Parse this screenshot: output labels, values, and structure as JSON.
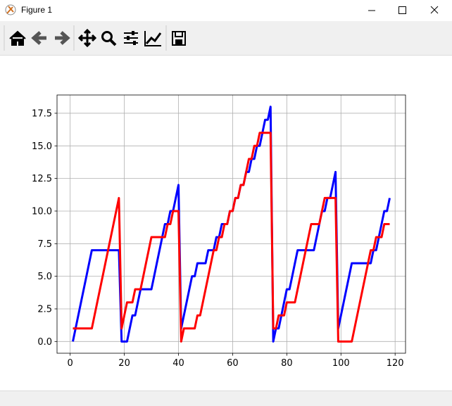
{
  "window": {
    "title": "Figure 1"
  },
  "chart_data": {
    "type": "line",
    "x": [
      1,
      2,
      3,
      4,
      5,
      6,
      7,
      8,
      9,
      10,
      11,
      12,
      13,
      14,
      15,
      16,
      17,
      18,
      19,
      20,
      21,
      22,
      23,
      24,
      25,
      26,
      27,
      28,
      29,
      30,
      31,
      32,
      33,
      34,
      35,
      36,
      37,
      38,
      39,
      40,
      41,
      42,
      43,
      44,
      45,
      46,
      47,
      48,
      49,
      50,
      51,
      52,
      53,
      54,
      55,
      56,
      57,
      58,
      59,
      60,
      61,
      62,
      63,
      64,
      65,
      66,
      67,
      68,
      69,
      70,
      71,
      72,
      73,
      74,
      75,
      76,
      77,
      78,
      79,
      80,
      81,
      82,
      83,
      84,
      85,
      86,
      87,
      88,
      89,
      90,
      91,
      92,
      93,
      94,
      95,
      96,
      97,
      98,
      99,
      100,
      101,
      102,
      103,
      104,
      105,
      106,
      107,
      108,
      109,
      110,
      111,
      112,
      113,
      114,
      115,
      116,
      117,
      118
    ],
    "series": [
      {
        "color": "#0000ff",
        "values": [
          0,
          1,
          2,
          3,
          4,
          5,
          6,
          7,
          7,
          7,
          7,
          7,
          7,
          7,
          7,
          7,
          7,
          7,
          0,
          0,
          0,
          1,
          2,
          2,
          3,
          4,
          4,
          4,
          4,
          4,
          5,
          6,
          7,
          8,
          9,
          9,
          10,
          10,
          11,
          12,
          1,
          2,
          3,
          4,
          5,
          5,
          6,
          6,
          6,
          6,
          7,
          7,
          7,
          8,
          8,
          9,
          9,
          9,
          10,
          10,
          11,
          11,
          12,
          12,
          13,
          13,
          14,
          14,
          15,
          15,
          16,
          17,
          17,
          18,
          0,
          1,
          1,
          2,
          3,
          4,
          4,
          5,
          6,
          7,
          7,
          7,
          7,
          7,
          7,
          7,
          8,
          9,
          10,
          10,
          11,
          11,
          12,
          13,
          1,
          2,
          3,
          4,
          5,
          6,
          6,
          6,
          6,
          6,
          6,
          6,
          6,
          7,
          7,
          8,
          9,
          10,
          10,
          11
        ]
      },
      {
        "color": "#ff0000",
        "values": [
          1,
          1,
          1,
          1,
          1,
          1,
          1,
          1,
          2,
          3,
          4,
          5,
          6,
          7,
          8,
          9,
          10,
          11,
          1,
          2,
          3,
          3,
          3,
          4,
          4,
          4,
          5,
          6,
          7,
          8,
          8,
          8,
          8,
          8,
          8,
          9,
          9,
          10,
          10,
          10,
          0,
          1,
          1,
          1,
          1,
          1,
          2,
          2,
          3,
          4,
          5,
          6,
          7,
          7,
          8,
          8,
          9,
          9,
          10,
          10,
          11,
          11,
          12,
          12,
          13,
          14,
          14,
          15,
          15,
          16,
          16,
          16,
          16,
          16,
          1,
          1,
          2,
          2,
          2,
          3,
          3,
          3,
          3,
          4,
          5,
          6,
          7,
          8,
          9,
          9,
          9,
          9,
          10,
          11,
          11,
          11,
          11,
          11,
          0,
          0,
          0,
          0,
          0,
          0,
          1,
          2,
          3,
          4,
          5,
          6,
          7,
          7,
          8,
          8,
          8,
          9,
          9,
          9
        ]
      }
    ],
    "xlim": [
      -4.85,
      123.85
    ],
    "xticks": [
      0,
      20,
      40,
      60,
      80,
      100,
      120
    ],
    "ylim": [
      -0.9,
      18.9
    ],
    "yticks": [
      {
        "value": 0,
        "label": "0.0"
      },
      2.5,
      {
        "value": 5,
        "label": "5.0"
      },
      7.5,
      {
        "value": 10,
        "label": "10.0"
      },
      12.5,
      {
        "value": 15,
        "label": "15.0"
      },
      17.5
    ],
    "grid": true,
    "line_width": 3
  }
}
